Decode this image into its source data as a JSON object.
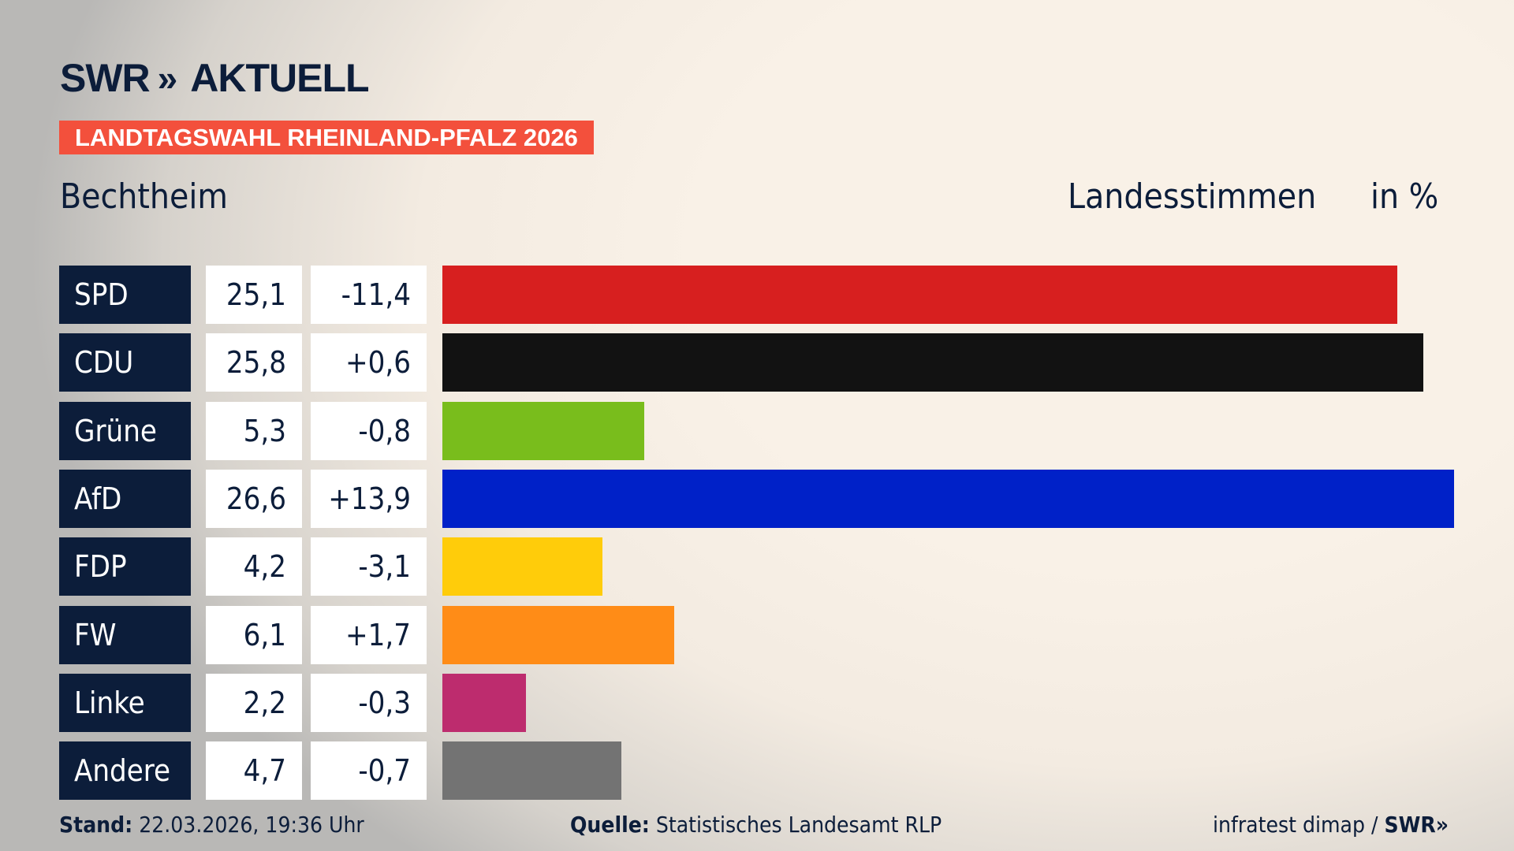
{
  "header": {
    "logo_text": "SWR",
    "logo_chevrons": "»",
    "logo_suffix": "AKTUELL",
    "banner": "LANDTAGSWAHL RHEINLAND-PFALZ 2026",
    "place": "Bechtheim",
    "metric": "Landesstimmen",
    "unit": "in %"
  },
  "chart_data": {
    "type": "bar",
    "orientation": "horizontal",
    "categories": [
      "SPD",
      "CDU",
      "Grüne",
      "AfD",
      "FDP",
      "FW",
      "Linke",
      "Andere"
    ],
    "values": [
      "25,1",
      "25,8",
      "5,3",
      "26,6",
      "4,2",
      "6,1",
      "2,2",
      "4,7"
    ],
    "numeric_values": [
      25.1,
      25.8,
      5.3,
      26.6,
      4.2,
      6.1,
      2.2,
      4.7
    ],
    "changes": [
      "-11,4",
      "+0,6",
      "-0,8",
      "+13,9",
      "-3,1",
      "+1,7",
      "-0,3",
      "-0,7"
    ],
    "colors": [
      "#d71f1f",
      "#121212",
      "#79bd1c",
      "#0021c8",
      "#ffcc0a",
      "#ff8c17",
      "#bd2c6e",
      "#737373"
    ],
    "xlim": [
      0,
      26.6
    ]
  },
  "footer": {
    "stand_label": "Stand:",
    "stand_value": "22.03.2026, 19:36 Uhr",
    "source_label": "Quelle:",
    "source_value": "Statistisches Landesamt RLP",
    "credit": "infratest dimap /",
    "credit_logo": "SWR»"
  }
}
